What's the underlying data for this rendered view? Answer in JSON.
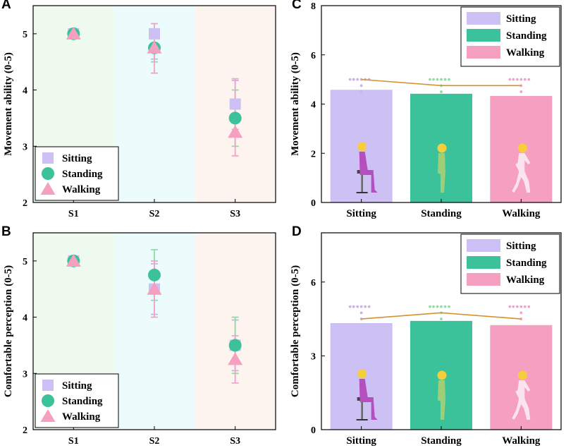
{
  "colors": {
    "sitting": "#cdc0f5",
    "standing": "#3cc29a",
    "walking": "#f5a0c0",
    "sitting_err": "#c9b3ea",
    "standing_err": "#8be0a4",
    "walking_err": "#f0a4cc",
    "band_s1": "#effaef",
    "band_s2": "#ecfbfb",
    "band_s3": "#fdf4ef",
    "line": "#d8912f",
    "figure_head": "#f6cd3a",
    "figure_sitting": "#b54fc0",
    "figure_standing": "#9ccf78",
    "figure_walking": "#fbe4ee",
    "chair": "#666666"
  },
  "chart_data": [
    {
      "panel": "A",
      "type": "scatter",
      "ylabel": "Movement ability (0-5)",
      "xlabel": "",
      "categories": [
        "S1",
        "S2",
        "S3"
      ],
      "ylim": [
        2,
        5.5
      ],
      "yticks": [
        2,
        3,
        4,
        5
      ],
      "grid": false,
      "legend": {
        "placement": "bottom-left",
        "entries": [
          "Sitting",
          "Standing",
          "Walking"
        ]
      },
      "series": [
        {
          "name": "Sitting",
          "marker": "square",
          "values": [
            5.0,
            5.0,
            3.75
          ],
          "err_low": [
            5.0,
            4.55,
            3.3
          ],
          "err_high": [
            5.0,
            5.0,
            4.2
          ]
        },
        {
          "name": "Standing",
          "marker": "circle",
          "values": [
            5.0,
            4.75,
            3.5
          ],
          "err_low": [
            5.0,
            4.5,
            3.0
          ],
          "err_high": [
            5.0,
            5.0,
            4.0
          ]
        },
        {
          "name": "Walking",
          "marker": "triangle",
          "values": [
            5.0,
            4.75,
            3.25
          ],
          "err_low": [
            5.0,
            4.3,
            2.83
          ],
          "err_high": [
            5.0,
            5.18,
            4.17
          ]
        }
      ]
    },
    {
      "panel": "B",
      "type": "scatter",
      "ylabel": "Comfortable perception (0-5)",
      "xlabel": "",
      "categories": [
        "S1",
        "S2",
        "S3"
      ],
      "ylim": [
        2,
        5.5
      ],
      "yticks": [
        2,
        3,
        4,
        5
      ],
      "grid": false,
      "legend": {
        "placement": "bottom-left",
        "entries": [
          "Sitting",
          "Standing",
          "Walking"
        ]
      },
      "series": [
        {
          "name": "Sitting",
          "marker": "square",
          "values": [
            5.0,
            4.5,
            3.5
          ],
          "err_low": [
            5.0,
            4.05,
            3.05
          ],
          "err_high": [
            5.0,
            4.95,
            3.95
          ]
        },
        {
          "name": "Standing",
          "marker": "circle",
          "values": [
            5.0,
            4.75,
            3.5
          ],
          "err_low": [
            5.0,
            4.3,
            3.0
          ],
          "err_high": [
            5.0,
            5.2,
            4.0
          ]
        },
        {
          "name": "Walking",
          "marker": "triangle",
          "values": [
            5.0,
            4.5,
            3.25
          ],
          "err_low": [
            5.0,
            4.0,
            2.83
          ],
          "err_high": [
            5.0,
            5.0,
            3.67
          ]
        }
      ]
    },
    {
      "panel": "C",
      "type": "bar",
      "ylabel": "Movement ability (0-5)",
      "xlabel": "",
      "categories": [
        "Sitting",
        "Standing",
        "Walking"
      ],
      "values": [
        4.58,
        4.42,
        4.33
      ],
      "line_values": [
        5.0,
        4.75,
        4.75
      ],
      "points": [
        [
          5,
          5,
          5,
          5,
          5,
          5,
          4.5
        ],
        [
          5,
          5,
          5,
          5,
          5,
          5,
          4.5
        ],
        [
          5,
          5,
          5,
          5,
          5,
          5,
          4.5
        ]
      ],
      "ylim": [
        0,
        8
      ],
      "yticks": [
        0,
        2,
        4,
        6,
        8
      ],
      "grid": false,
      "legend": {
        "placement": "top-right",
        "entries": [
          "Sitting",
          "Standing",
          "Walking"
        ]
      }
    },
    {
      "panel": "D",
      "type": "bar",
      "ylabel": "Comfortable perception (0-5)",
      "xlabel": "",
      "categories": [
        "Sitting",
        "Standing",
        "Walking"
      ],
      "values": [
        4.33,
        4.42,
        4.25
      ],
      "line_values": [
        4.5,
        4.75,
        4.5
      ],
      "points": [
        [
          5,
          5,
          5,
          5,
          5,
          5,
          4.5
        ],
        [
          5,
          5,
          5,
          5,
          5,
          5,
          4.5
        ],
        [
          5,
          5,
          5,
          5,
          5,
          5,
          4.5
        ]
      ],
      "ylim": [
        0,
        8
      ],
      "yticks": [
        0,
        3,
        6
      ],
      "grid": false,
      "legend": {
        "placement": "top-right",
        "entries": [
          "Sitting",
          "Standing",
          "Walking"
        ]
      }
    }
  ]
}
